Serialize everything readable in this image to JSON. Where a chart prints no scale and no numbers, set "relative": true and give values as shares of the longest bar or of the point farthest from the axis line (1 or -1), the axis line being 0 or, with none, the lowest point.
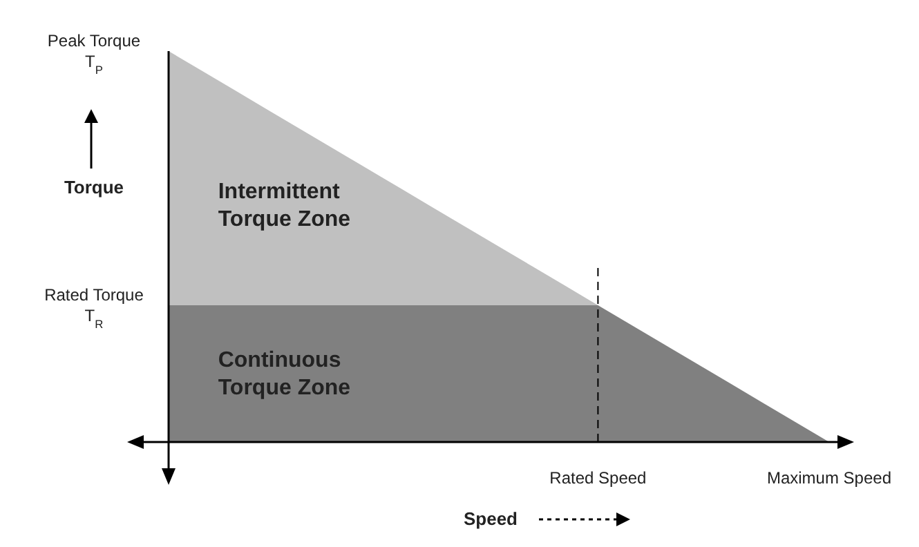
{
  "chart_data": {
    "type": "area",
    "relative": true,
    "stacked": true,
    "legend": false,
    "xlabel": "Speed",
    "ylabel": "Torque",
    "categories": [
      null,
      null,
      null,
      null,
      null,
      null,
      null,
      null,
      null,
      null,
      null,
      null,
      null,
      "Rated Speed",
      null,
      null,
      null,
      null,
      null,
      null,
      "Maximum Speed"
    ],
    "series": [
      {
        "name": "Continuous Torque Zone",
        "color": "#808080",
        "values": [
          0.35,
          0.35,
          0.35,
          0.35,
          0.35,
          0.35,
          0.35,
          0.35,
          0.35,
          0.35,
          0.35,
          0.35,
          0.35,
          0.35,
          0.3,
          0.25,
          0.2,
          0.15,
          0.1,
          0.05,
          0
        ]
      },
      {
        "name": "Intermittent Torque Zone",
        "color": "#c0c0c0",
        "values": [
          0.65,
          0.6,
          0.55,
          0.5,
          0.45,
          0.4,
          0.35,
          0.3,
          0.25,
          0.2,
          0.15,
          0.1,
          0.05,
          0,
          0,
          0,
          0,
          0,
          0,
          0,
          0
        ]
      }
    ],
    "ref_lines": [
      {
        "axis": "x",
        "value": "Rated Speed",
        "line_style": "dashed",
        "color": "#000000"
      }
    ],
    "annotations": [
      "Peak Torque\nT$_{P}$",
      "Rated Torque\nT$_{R}$"
    ]
  }
}
